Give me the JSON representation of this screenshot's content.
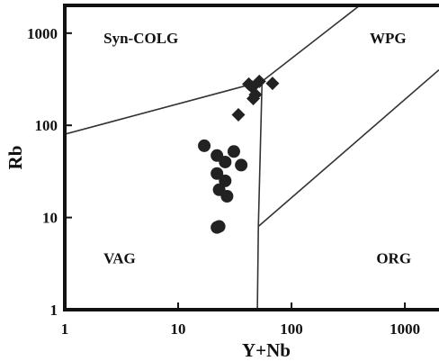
{
  "chart_data": {
    "type": "scatter",
    "xlabel": "Y+Nb",
    "ylabel": "Rb",
    "xscale": "log",
    "yscale": "log",
    "xlim": [
      1,
      2000
    ],
    "ylim": [
      1,
      2000
    ],
    "x_ticks": [
      {
        "value": 1,
        "label": "1"
      },
      {
        "value": 10,
        "label": "10"
      },
      {
        "value": 100,
        "label": "100"
      },
      {
        "value": 1000,
        "label": "1000"
      }
    ],
    "y_ticks": [
      {
        "value": 1,
        "label": "1"
      },
      {
        "value": 10,
        "label": "10"
      },
      {
        "value": 100,
        "label": "100"
      },
      {
        "value": 1000,
        "label": "1000"
      }
    ],
    "grid": false,
    "colors": {
      "axes": "#111111",
      "marker": "#222222",
      "boundary": "#333333"
    },
    "fields": [
      {
        "label": "Syn-COLG",
        "x": 2.2,
        "y": 780
      },
      {
        "label": "WPG",
        "x": 490,
        "y": 780
      },
      {
        "label": "VAG",
        "x": 2.2,
        "y": 3.2
      },
      {
        "label": "ORG",
        "x": 560,
        "y": 3.2
      }
    ],
    "boundaries": [
      {
        "name": "VAG / Syn-COLG",
        "points": [
          [
            1,
            80
          ],
          [
            55,
            300
          ]
        ]
      },
      {
        "name": "Syn-COLG / WPG",
        "points": [
          [
            55,
            300
          ],
          [
            400,
            2000
          ]
        ]
      },
      {
        "name": "VAG+Syn-COLG / WPG+ORG",
        "points": [
          [
            55,
            300
          ],
          [
            51,
            8
          ],
          [
            50,
            1
          ]
        ]
      },
      {
        "name": "WPG / ORG",
        "points": [
          [
            51,
            8
          ],
          [
            2000,
            400
          ]
        ]
      }
    ],
    "series": [
      {
        "marker": "circle",
        "x": [
          17,
          22,
          26,
          31,
          36,
          22,
          26,
          23,
          27,
          23,
          22
        ],
        "y": [
          60,
          47,
          40,
          52,
          37,
          30,
          25,
          20,
          17,
          8,
          7.8
        ]
      },
      {
        "marker": "diamond",
        "x": [
          34,
          42,
          45,
          48,
          52,
          46,
          68
        ],
        "y": [
          130,
          280,
          260,
          215,
          300,
          195,
          285
        ]
      }
    ]
  }
}
